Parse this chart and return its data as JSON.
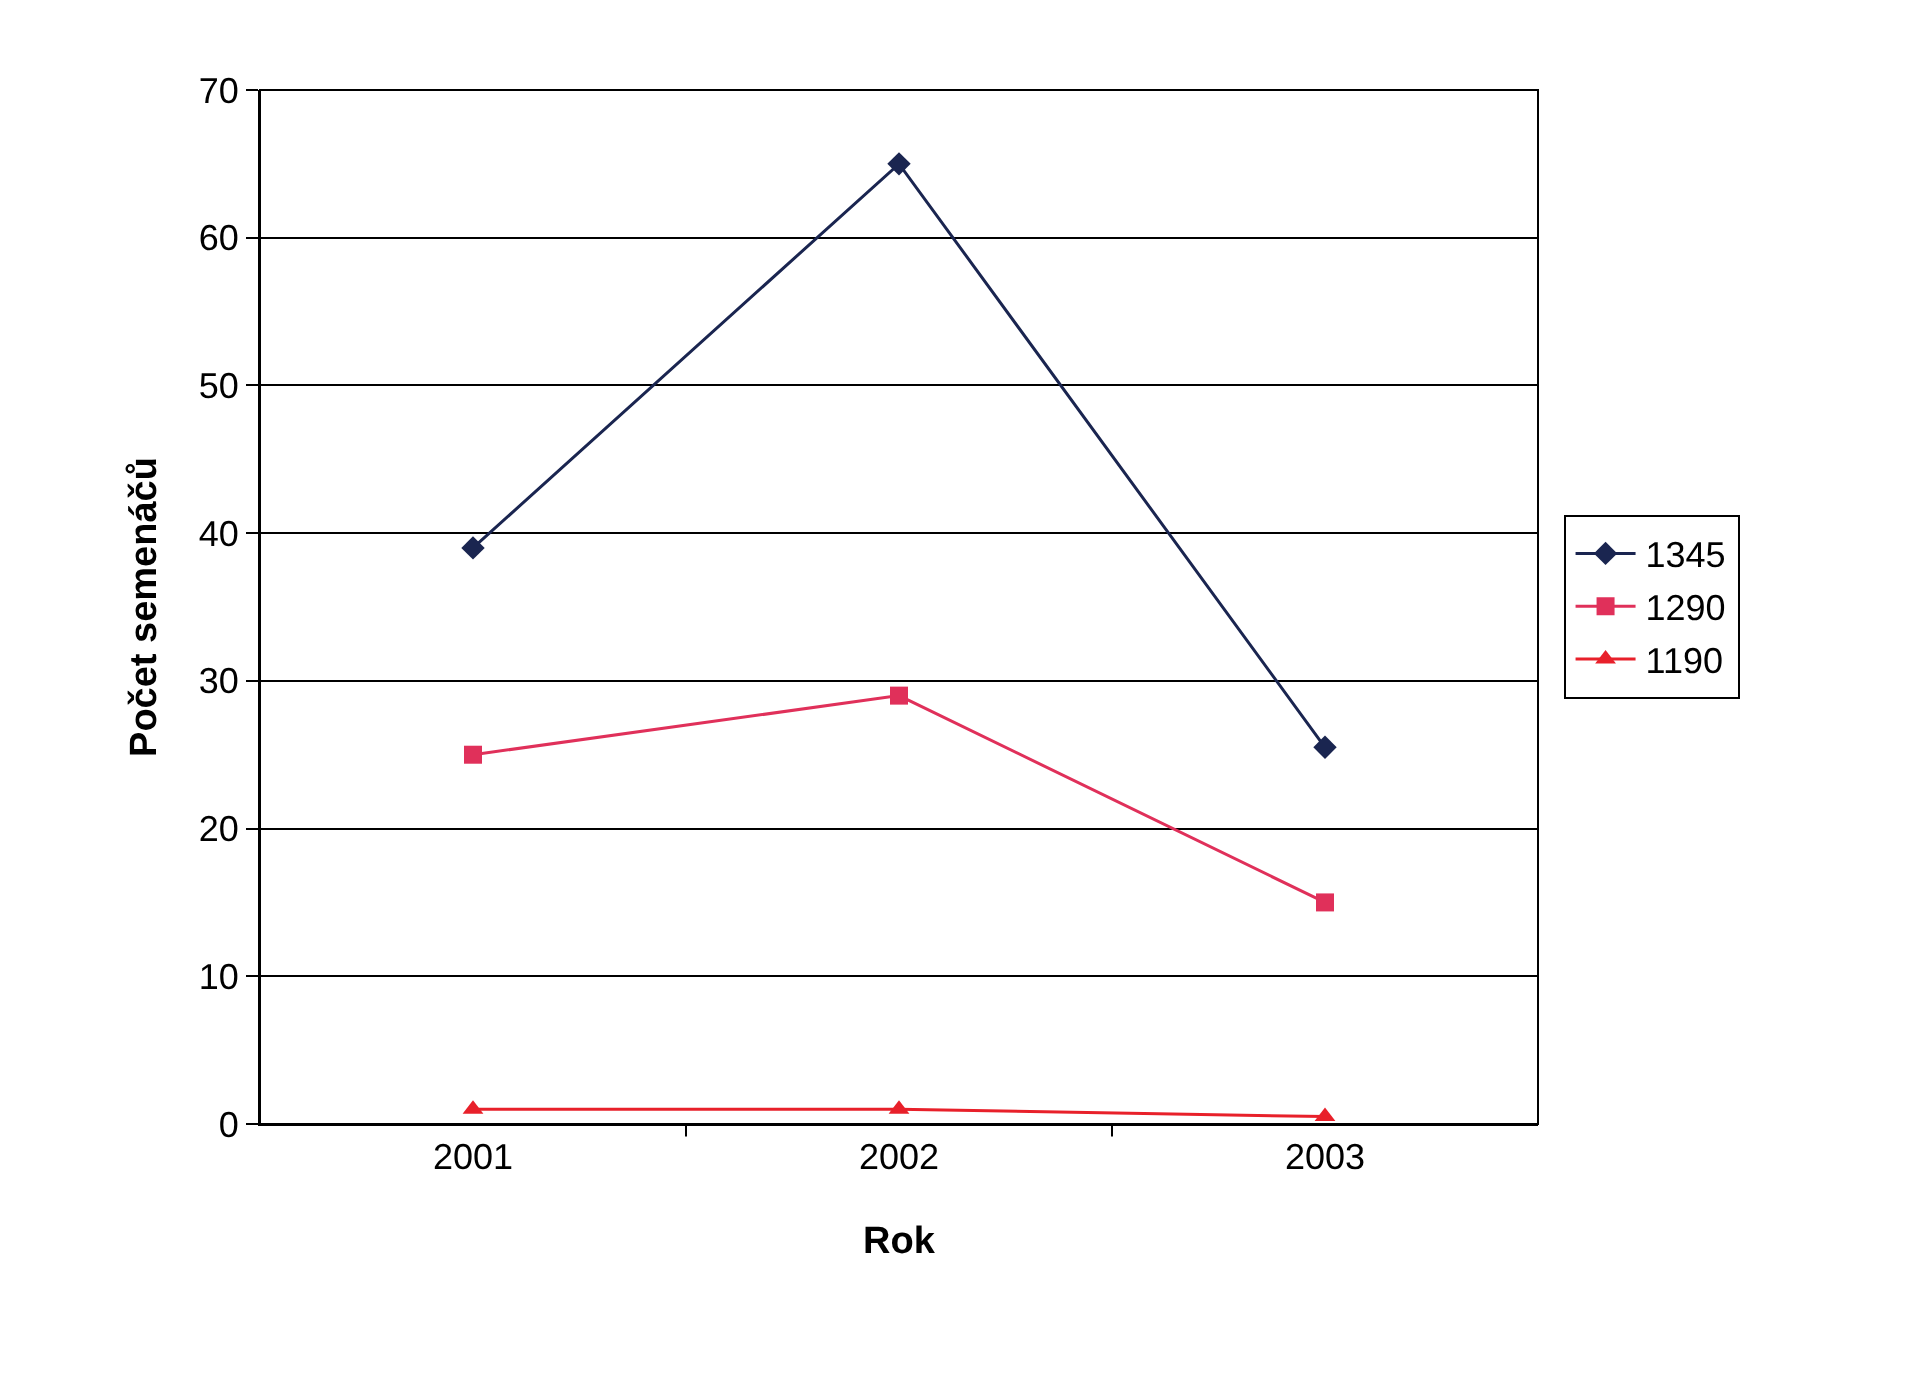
{
  "chart_data": {
    "type": "line",
    "xlabel": "Rok",
    "ylabel": "Počet semenáčů",
    "categories": [
      "2001",
      "2002",
      "2003"
    ],
    "series": [
      {
        "name": "1345",
        "color": "#1a2550",
        "marker": "diamond",
        "values": [
          39,
          65,
          25.5
        ]
      },
      {
        "name": "1290",
        "color": "#e0305a",
        "marker": "square",
        "values": [
          25,
          29,
          15
        ]
      },
      {
        "name": "1190",
        "color": "#e8202a",
        "marker": "triangle",
        "values": [
          1,
          1,
          0.5
        ]
      }
    ],
    "ylim": [
      0,
      70
    ],
    "yticks": [
      0,
      10,
      20,
      30,
      40,
      50,
      60,
      70
    ],
    "grid": "y",
    "legend": "right",
    "line_style": "solid"
  }
}
